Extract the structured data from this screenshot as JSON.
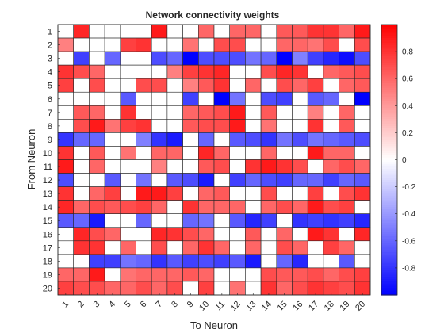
{
  "chart_data": {
    "type": "heatmap",
    "title": "Network connectivity weights",
    "xlabel": "To Neuron",
    "ylabel": "From Neuron",
    "x_categories": [
      "1",
      "2",
      "3",
      "4",
      "5",
      "6",
      "7",
      "8",
      "9",
      "10",
      "11",
      "12",
      "13",
      "14",
      "15",
      "16",
      "17",
      "18",
      "19",
      "20"
    ],
    "y_categories": [
      "1",
      "2",
      "3",
      "4",
      "5",
      "6",
      "7",
      "8",
      "9",
      "10",
      "11",
      "12",
      "13",
      "14",
      "15",
      "16",
      "17",
      "18",
      "19",
      "20"
    ],
    "value_range": [
      -1,
      1
    ],
    "colormap": {
      "low": "#0000ff",
      "mid": "#ffffff",
      "high": "#ff0000"
    },
    "colorbar_ticks": [
      0.8,
      0.6,
      0.4,
      0.2,
      0,
      -0.2,
      -0.4,
      -0.6,
      -0.8
    ],
    "grid": true,
    "values": [
      [
        0,
        0.85,
        0,
        0,
        0,
        0,
        0.9,
        0,
        0,
        0.6,
        0,
        0.6,
        0.6,
        0,
        0.65,
        0.65,
        0.8,
        0.8,
        0.6,
        0.9
      ],
      [
        0.5,
        0,
        0,
        0,
        0.75,
        0.8,
        0,
        0,
        0.55,
        0,
        0.7,
        0.7,
        0,
        0,
        0.6,
        0.6,
        0.55,
        0.7,
        0,
        0.7
      ],
      [
        0,
        -0.75,
        0,
        -0.6,
        0,
        0,
        -0.7,
        -0.6,
        -1.0,
        -0.7,
        -0.7,
        -0.7,
        -0.55,
        -0.6,
        -1.0,
        -0.5,
        -0.75,
        -0.85,
        -0.95,
        -0.7
      ],
      [
        0.8,
        0.7,
        0.6,
        0,
        0,
        0,
        0,
        0.5,
        0.75,
        0.8,
        0.85,
        0,
        0,
        0.7,
        0.85,
        0.8,
        0,
        0.6,
        0.65,
        0.7
      ],
      [
        0.75,
        0,
        0.7,
        0,
        0,
        0.7,
        0.7,
        0,
        0.5,
        0.65,
        0.8,
        0,
        0.6,
        0,
        0.7,
        0.6,
        0.75,
        0,
        0.6,
        0.65
      ],
      [
        0,
        0,
        0,
        0,
        -0.65,
        0,
        0,
        0,
        -0.75,
        0,
        -1.0,
        -0.55,
        0,
        -0.7,
        -0.75,
        0,
        -0.65,
        -0.6,
        0,
        -1.0
      ],
      [
        0,
        0.65,
        0.6,
        0,
        0.8,
        0,
        0,
        0,
        0.6,
        0.65,
        0.7,
        0.9,
        0,
        0.65,
        0,
        0,
        0.5,
        0,
        0.6,
        0
      ],
      [
        0,
        0.7,
        0.9,
        0.55,
        0.75,
        0.8,
        0,
        0,
        0.65,
        0.7,
        0.7,
        0.9,
        0,
        0.55,
        0,
        0,
        0.8,
        0,
        0.65,
        0
      ],
      [
        -0.8,
        -0.6,
        -0.6,
        0,
        0,
        -0.5,
        -0.8,
        -0.9,
        0,
        -0.6,
        0,
        -0.65,
        -0.7,
        -0.8,
        -0.55,
        -0.7,
        -0.55,
        -0.6,
        -0.65,
        -0.7
      ],
      [
        0.8,
        0,
        0.65,
        0,
        0.55,
        0,
        0.6,
        0.6,
        0,
        0.85,
        0.6,
        0,
        0,
        0.6,
        0,
        0,
        0.9,
        0.6,
        0.6,
        0
      ],
      [
        0.9,
        0,
        0.6,
        0,
        0,
        0,
        0.5,
        0,
        0,
        0.65,
        0.7,
        0,
        0.8,
        0.9,
        0.8,
        0.7,
        0,
        0.6,
        0.7,
        0.6
      ],
      [
        -0.7,
        0,
        0,
        -0.65,
        0,
        -0.55,
        0,
        -0.65,
        -0.7,
        -0.9,
        0,
        -0.75,
        -0.6,
        -0.7,
        -0.75,
        -0.6,
        -0.6,
        -0.75,
        -0.6,
        -0.65
      ],
      [
        0.8,
        0,
        0.6,
        0.75,
        0,
        0.9,
        0.9,
        0.75,
        0,
        0.6,
        0.65,
        0,
        0,
        0.7,
        0,
        0,
        0.75,
        0,
        0.7,
        0.8
      ],
      [
        0.85,
        0.6,
        0.7,
        0.65,
        0.7,
        0.75,
        0.6,
        0,
        0.8,
        0.6,
        0.6,
        0.6,
        0,
        0.6,
        0.7,
        0.6,
        0.9,
        0.7,
        0.75,
        0
      ],
      [
        -0.65,
        -0.6,
        -0.9,
        0,
        0,
        -0.6,
        0,
        0,
        -0.6,
        -0.55,
        0,
        -0.65,
        -0.85,
        -0.75,
        0,
        -0.8,
        -0.75,
        -0.8,
        -0.75,
        -0.85
      ],
      [
        0,
        0.85,
        0.7,
        0.6,
        0,
        0,
        0.85,
        0.8,
        0.7,
        0.6,
        0,
        0,
        0.65,
        0,
        0.6,
        0,
        0.9,
        0.8,
        0,
        0.85
      ],
      [
        0,
        0.8,
        0.8,
        0,
        0.6,
        0,
        0.7,
        0,
        0.6,
        0.8,
        0.6,
        0,
        0.6,
        0,
        0.7,
        0.6,
        0,
        0.75,
        0.6,
        0
      ],
      [
        0,
        0,
        -0.75,
        -0.75,
        -0.55,
        -0.6,
        -0.8,
        -0.65,
        -0.75,
        -0.7,
        -0.75,
        -0.65,
        -0.9,
        0,
        -0.6,
        -0.85,
        0,
        0,
        -0.65,
        0
      ],
      [
        0.6,
        0.6,
        0.9,
        0,
        0.55,
        0.6,
        0.6,
        0.6,
        0.65,
        0.6,
        0,
        0,
        0,
        0.7,
        0.65,
        0.65,
        0.7,
        0.6,
        0.7,
        0.75
      ],
      [
        0.75,
        0.7,
        0.7,
        0.6,
        0.6,
        0.7,
        0.6,
        0.7,
        0,
        0.75,
        0,
        0.55,
        0,
        0.8,
        0.6,
        0.7,
        0.8,
        0.75,
        0.7,
        0.8
      ]
    ]
  }
}
